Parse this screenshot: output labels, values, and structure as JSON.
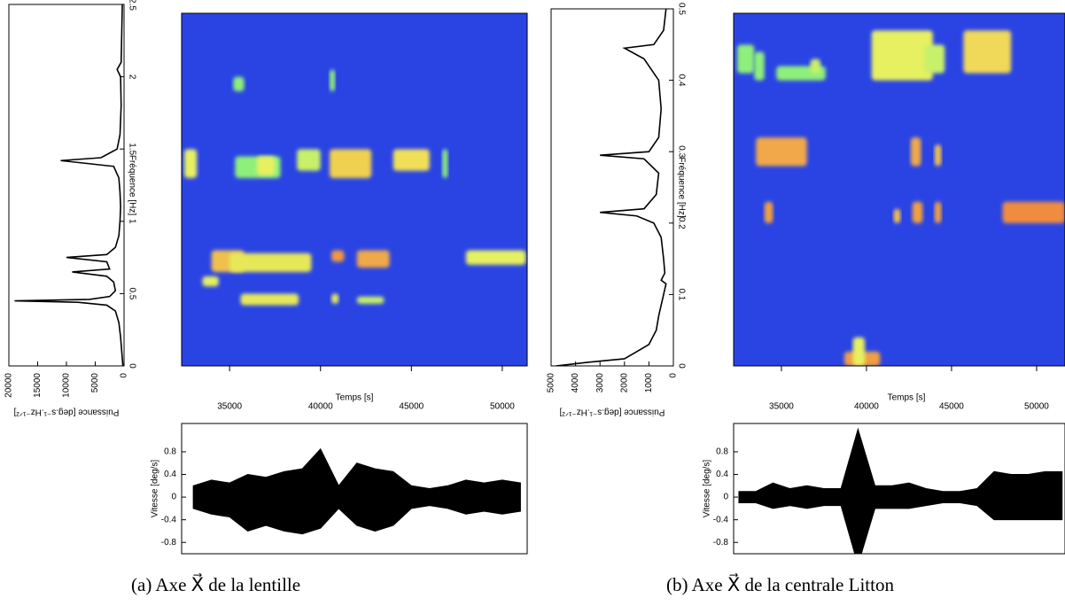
{
  "chart_data": [
    {
      "type": "spectrum",
      "ylabel": "Fréquence [Hz]",
      "xlabel": "Puissance [deg.s⁻¹.Hz⁻¹ᐟ²]",
      "xlim": [
        20000,
        0
      ],
      "xticks": [
        20000,
        15000,
        10000,
        5000,
        0
      ],
      "ylim": [
        0,
        2.5
      ],
      "yticks": [
        0,
        0.5,
        1,
        1.5,
        2,
        2.5
      ],
      "color": "#000000",
      "frequencies": [
        0,
        0.1,
        0.2,
        0.3,
        0.38,
        0.42,
        0.44,
        0.45,
        0.46,
        0.48,
        0.52,
        0.58,
        0.62,
        0.65,
        0.67,
        0.72,
        0.75,
        0.77,
        0.82,
        0.9,
        1.0,
        1.1,
        1.2,
        1.3,
        1.38,
        1.42,
        1.44,
        1.5,
        1.6,
        1.8,
        2.0,
        2.05,
        2.1,
        2.3,
        2.5
      ],
      "values": [
        200,
        400,
        600,
        900,
        1500,
        3000,
        8000,
        19000,
        6000,
        2500,
        1500,
        1800,
        3000,
        9000,
        2500,
        3000,
        10000,
        3000,
        1500,
        900,
        700,
        600,
        700,
        900,
        1800,
        11000,
        4000,
        1200,
        700,
        500,
        600,
        1200,
        500,
        400,
        300
      ]
    },
    {
      "type": "spectrogram",
      "xlabel": "Temps [s]",
      "background": "#2a44e4",
      "xlim": [
        32360,
        51370
      ],
      "xticks": [
        35000,
        40000,
        45000,
        50000
      ],
      "ylim": [
        0,
        2.44
      ],
      "blobs": [
        {
          "t": [
            32500,
            33200
          ],
          "f": [
            1.3,
            1.5
          ],
          "color": "#e6f060"
        },
        {
          "t": [
            35300,
            37800
          ],
          "f": [
            1.3,
            1.45
          ],
          "color": "#8ef07a"
        },
        {
          "t": [
            36500,
            37500
          ],
          "f": [
            1.32,
            1.45
          ],
          "color": "#e6f060"
        },
        {
          "t": [
            38700,
            40000
          ],
          "f": [
            1.35,
            1.5
          ],
          "color": "#c8f068"
        },
        {
          "t": [
            40500,
            42800
          ],
          "f": [
            1.3,
            1.5
          ],
          "color": "#f0d050"
        },
        {
          "t": [
            44000,
            46000
          ],
          "f": [
            1.35,
            1.5
          ],
          "color": "#f0e058"
        },
        {
          "t": [
            46700,
            47000
          ],
          "f": [
            1.3,
            1.5
          ],
          "color": "#8ef07a"
        },
        {
          "t": [
            34000,
            35800
          ],
          "f": [
            0.65,
            0.8
          ],
          "color": "#f0c050"
        },
        {
          "t": [
            35000,
            39500
          ],
          "f": [
            0.65,
            0.78
          ],
          "color": "#e6e858"
        },
        {
          "t": [
            40600,
            41300
          ],
          "f": [
            0.72,
            0.8
          ],
          "color": "#f09a40"
        },
        {
          "t": [
            42000,
            43800
          ],
          "f": [
            0.68,
            0.8
          ],
          "color": "#f0a848"
        },
        {
          "t": [
            48000,
            51300
          ],
          "f": [
            0.7,
            0.8
          ],
          "color": "#e6f060"
        },
        {
          "t": [
            33500,
            34400
          ],
          "f": [
            0.55,
            0.62
          ],
          "color": "#e6f060"
        },
        {
          "t": [
            35600,
            38800
          ],
          "f": [
            0.42,
            0.5
          ],
          "color": "#e6e858"
        },
        {
          "t": [
            40600,
            41000
          ],
          "f": [
            0.43,
            0.5
          ],
          "color": "#e6e858"
        },
        {
          "t": [
            42000,
            43500
          ],
          "f": [
            0.43,
            0.48
          ],
          "color": "#c8f068"
        },
        {
          "t": [
            35200,
            35800
          ],
          "f": [
            1.9,
            2.0
          ],
          "color": "#8ef07a"
        },
        {
          "t": [
            40500,
            40800
          ],
          "f": [
            1.9,
            2.05
          ],
          "color": "#8ef07a"
        }
      ]
    },
    {
      "type": "envelope",
      "ylabel": "Vitesse [deg/s]",
      "color": "#000000",
      "xlim": [
        32360,
        51370
      ],
      "ylim": [
        -1,
        1.3
      ],
      "yticks": [
        0.8,
        0.4,
        0,
        -0.4,
        -0.8
      ],
      "x": [
        33000,
        34000,
        35000,
        36000,
        37000,
        38000,
        39000,
        40000,
        41000,
        42000,
        43000,
        44000,
        45000,
        46000,
        47000,
        48000,
        49000,
        50000,
        51000
      ],
      "upper": [
        0.2,
        0.3,
        0.25,
        0.4,
        0.35,
        0.45,
        0.5,
        0.85,
        0.2,
        0.6,
        0.5,
        0.45,
        0.2,
        0.15,
        0.2,
        0.3,
        0.25,
        0.3,
        0.25
      ],
      "lower": [
        -0.2,
        -0.3,
        -0.35,
        -0.6,
        -0.5,
        -0.6,
        -0.65,
        -0.55,
        -0.2,
        -0.5,
        -0.6,
        -0.5,
        -0.2,
        -0.15,
        -0.2,
        -0.3,
        -0.25,
        -0.3,
        -0.25
      ]
    },
    {
      "type": "spectrum",
      "ylabel": "Fréquence [Hz]",
      "xlabel": "Puissance [deg.s⁻¹.Hz⁻¹ᐟ²]",
      "xlim": [
        5000,
        0
      ],
      "xticks": [
        5000,
        4000,
        3000,
        2000,
        1000,
        0
      ],
      "ylim": [
        0,
        0.5
      ],
      "yticks": [
        0,
        0.1,
        0.2,
        0.3,
        0.4,
        0.5
      ],
      "color": "#000000",
      "frequencies": [
        0,
        0.005,
        0.01,
        0.02,
        0.03,
        0.05,
        0.07,
        0.1,
        0.115,
        0.12,
        0.13,
        0.15,
        0.18,
        0.2,
        0.21,
        0.215,
        0.22,
        0.24,
        0.27,
        0.29,
        0.295,
        0.3,
        0.32,
        0.36,
        0.4,
        0.43,
        0.445,
        0.45,
        0.47,
        0.5
      ],
      "values": [
        4800,
        3500,
        2000,
        1500,
        1000,
        700,
        600,
        400,
        300,
        500,
        350,
        400,
        500,
        800,
        1500,
        3000,
        1200,
        700,
        600,
        1200,
        3000,
        1000,
        600,
        500,
        600,
        1200,
        2000,
        800,
        400,
        300
      ]
    },
    {
      "type": "spectrogram",
      "xlabel": "Temps [s]",
      "background": "#2a44e4",
      "xlim": [
        32190,
        51670
      ],
      "xticks": [
        35000,
        40000,
        45000,
        50000
      ],
      "ylim": [
        0,
        0.494
      ],
      "blobs": [
        {
          "t": [
            32400,
            33400
          ],
          "f": [
            0.41,
            0.45
          ],
          "color": "#8ef07a"
        },
        {
          "t": [
            33400,
            34000
          ],
          "f": [
            0.4,
            0.44
          ],
          "color": "#8ef07a"
        },
        {
          "t": [
            34700,
            37600
          ],
          "f": [
            0.4,
            0.42
          ],
          "color": "#8ef07a"
        },
        {
          "t": [
            36700,
            37300
          ],
          "f": [
            0.41,
            0.43
          ],
          "color": "#c8f068"
        },
        {
          "t": [
            40300,
            43900
          ],
          "f": [
            0.4,
            0.47
          ],
          "color": "#e6f060"
        },
        {
          "t": [
            43400,
            44600
          ],
          "f": [
            0.41,
            0.45
          ],
          "color": "#c8f068"
        },
        {
          "t": [
            45700,
            48500
          ],
          "f": [
            0.41,
            0.47
          ],
          "color": "#f0d858"
        },
        {
          "t": [
            33500,
            36500
          ],
          "f": [
            0.28,
            0.32
          ],
          "color": "#f0a848"
        },
        {
          "t": [
            42600,
            43200
          ],
          "f": [
            0.28,
            0.32
          ],
          "color": "#f0a848"
        },
        {
          "t": [
            44000,
            44400
          ],
          "f": [
            0.28,
            0.31
          ],
          "color": "#f0c050"
        },
        {
          "t": [
            34000,
            34500
          ],
          "f": [
            0.2,
            0.23
          ],
          "color": "#f0a040"
        },
        {
          "t": [
            41600,
            42000
          ],
          "f": [
            0.2,
            0.22
          ],
          "color": "#f0c050"
        },
        {
          "t": [
            42700,
            43300
          ],
          "f": [
            0.2,
            0.23
          ],
          "color": "#f0a040"
        },
        {
          "t": [
            44000,
            44400
          ],
          "f": [
            0.2,
            0.23
          ],
          "color": "#f0a040"
        },
        {
          "t": [
            48000,
            51670
          ],
          "f": [
            0.2,
            0.23
          ],
          "color": "#f08c40"
        },
        {
          "t": [
            38700,
            40800
          ],
          "f": [
            0.0,
            0.02
          ],
          "color": "#f0a040"
        },
        {
          "t": [
            39200,
            39900
          ],
          "f": [
            0.0,
            0.04
          ],
          "color": "#e6f060"
        }
      ]
    },
    {
      "type": "envelope",
      "ylabel": "Vitesse [deg/s]",
      "color": "#000000",
      "xlim": [
        32190,
        51670
      ],
      "ylim": [
        -1,
        1.3
      ],
      "yticks": [
        0.8,
        0.4,
        0,
        -0.4,
        -0.8
      ],
      "x": [
        32500,
        33500,
        34500,
        35500,
        36500,
        37500,
        38500,
        39500,
        40500,
        41500,
        42500,
        43500,
        44500,
        45500,
        46500,
        47500,
        48500,
        49500,
        50500,
        51500
      ],
      "upper": [
        0.1,
        0.1,
        0.25,
        0.15,
        0.2,
        0.15,
        0.15,
        1.2,
        0.2,
        0.2,
        0.25,
        0.15,
        0.1,
        0.1,
        0.15,
        0.45,
        0.4,
        0.4,
        0.45,
        0.45
      ],
      "lower": [
        -0.1,
        -0.1,
        -0.2,
        -0.15,
        -0.2,
        -0.15,
        -0.15,
        -1.2,
        -0.2,
        -0.2,
        -0.2,
        -0.15,
        -0.1,
        -0.1,
        -0.15,
        -0.4,
        -0.4,
        -0.4,
        -0.4,
        -0.4
      ]
    }
  ],
  "captions": [
    "(a) Axe X⃗ de la lentille",
    "(b) Axe X⃗ de la centrale Litton"
  ]
}
